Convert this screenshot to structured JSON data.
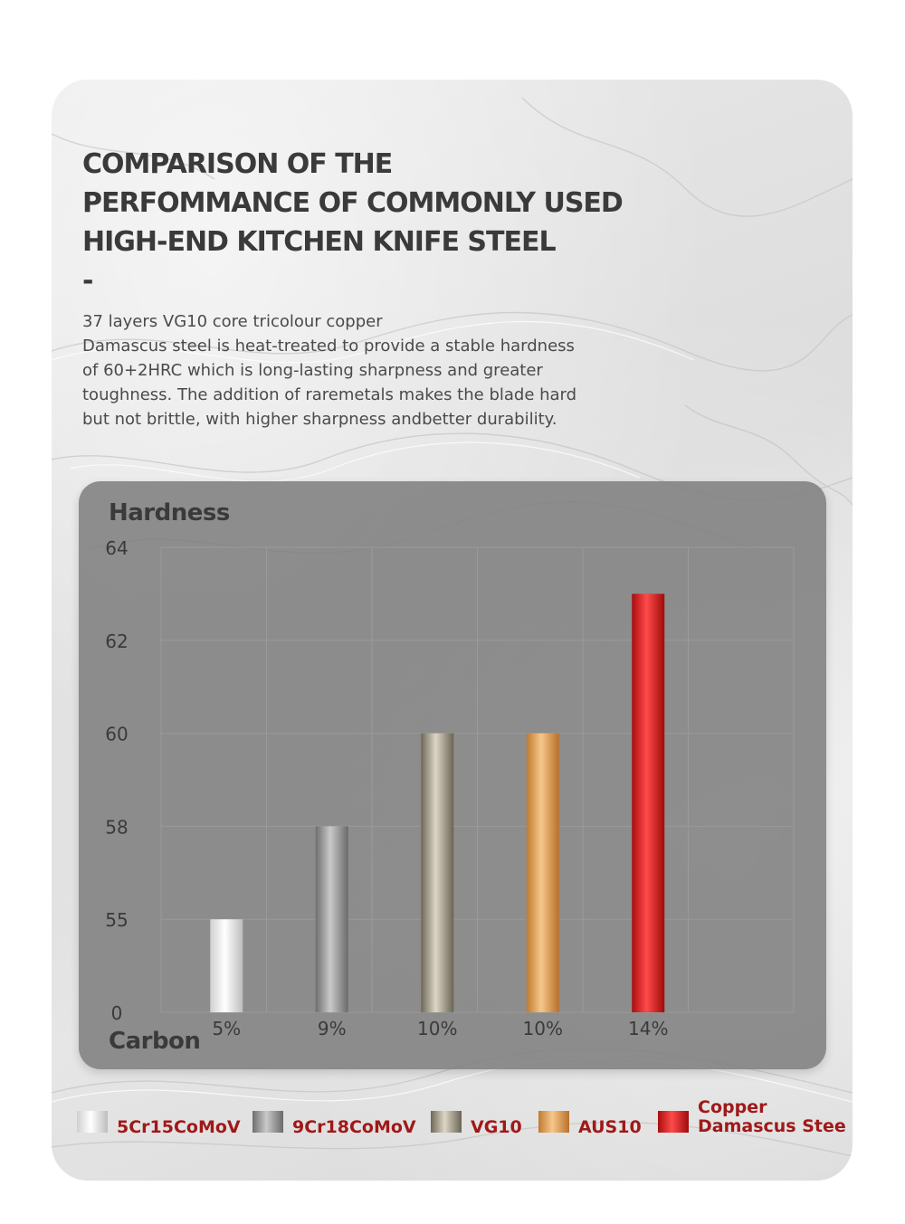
{
  "title": [
    "COMPARISON OF THE",
    "PERFOMMANCE OF COMMONLY USED",
    "HIGH-END KITCHEN KNIFE STEEL",
    "-"
  ],
  "description": [
    "37 layers VG10 core tricolour copper",
    "Damascus steel is  heat-treated to provide a stable hardness",
    "of 60+2HRC which is long-lasting sharpness and greater",
    "toughness. The addition of raremetals makes the blade hard",
    "but not brittle, with higher sharpness andbetter durability."
  ],
  "chart_data": {
    "type": "bar",
    "ylabel": "Hardness",
    "xlabel": "Carbon",
    "y_ticks": [
      "0",
      "55",
      "58",
      "60",
      "62",
      "64"
    ],
    "categories": [
      "5%",
      "9%",
      "10%",
      "10%",
      "14%"
    ],
    "values": [
      55,
      58,
      60,
      60,
      63
    ],
    "grid": true,
    "series": [
      {
        "name": "5Cr15CoMoV",
        "value": 55,
        "colors": [
          "#cfcfcf",
          "#ffffff",
          "#bdbdbd"
        ]
      },
      {
        "name": "9Cr18CoMoV",
        "value": 58,
        "colors": [
          "#6e6e6e",
          "#c9c9c9",
          "#6a6a6a"
        ]
      },
      {
        "name": "VG10",
        "value": 60,
        "colors": [
          "#6e6858",
          "#ddd6c6",
          "#6a6454"
        ]
      },
      {
        "name": "AUS10",
        "value": 60,
        "colors": [
          "#c07a30",
          "#f6c78a",
          "#b8702a"
        ]
      },
      {
        "name": "Copper Damascus Stee",
        "label_lines": [
          "Copper",
          "Damascus Stee"
        ],
        "value": 63,
        "colors": [
          "#a80d0d",
          "#ff4a4a",
          "#a00b0b"
        ]
      }
    ]
  }
}
